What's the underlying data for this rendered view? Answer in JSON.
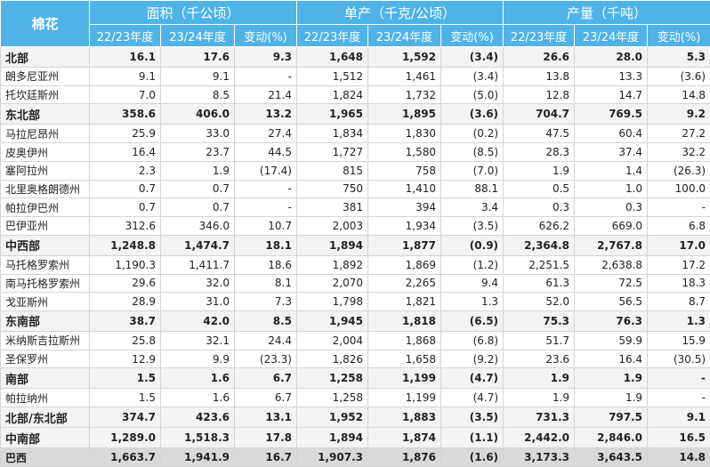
{
  "table": {
    "header": {
      "label": "棉花",
      "groups": [
        "面积（千公顷）",
        "单产（千克/公顷）",
        "产量（千吨）"
      ],
      "subheaders": [
        "22/23年度",
        "23/24年度",
        "变动(%)",
        "22/23年度",
        "23/24年度",
        "变动(%)",
        "22/23年度",
        "23/24年度",
        "变动(%)"
      ]
    },
    "rows": [
      [
        "北部",
        "16.1",
        "17.6",
        "9.3",
        "1,648",
        "1,592",
        "(3.4)",
        "26.6",
        "28.0",
        "5.3"
      ],
      [
        "朗多尼亚州",
        "9.1",
        "9.1",
        "-",
        "1,512",
        "1,461",
        "(3.4)",
        "13.8",
        "13.3",
        "(3.6)"
      ],
      [
        "托坎廷斯州",
        "7.0",
        "8.5",
        "21.4",
        "1,824",
        "1,732",
        "(5.0)",
        "12.8",
        "14.7",
        "14.8"
      ],
      [
        "东北部",
        "358.6",
        "406.0",
        "13.2",
        "1,965",
        "1,895",
        "(3.6)",
        "704.7",
        "769.5",
        "9.2"
      ],
      [
        "马拉尼昂州",
        "25.9",
        "33.0",
        "27.4",
        "1,834",
        "1,830",
        "(0.2)",
        "47.5",
        "60.4",
        "27.2"
      ],
      [
        "皮奥伊州",
        "16.4",
        "23.7",
        "44.5",
        "1,727",
        "1,580",
        "(8.5)",
        "28.3",
        "37.4",
        "32.2"
      ],
      [
        "塞阿拉州",
        "2.3",
        "1.9",
        "(17.4)",
        "815",
        "758",
        "(7.0)",
        "1.9",
        "1.4",
        "(26.3)"
      ],
      [
        "北里奥格朗德州",
        "0.7",
        "0.7",
        "-",
        "750",
        "1,410",
        "88.1",
        "0.5",
        "1.0",
        "100.0"
      ],
      [
        "帕拉伊巴州",
        "0.7",
        "0.7",
        "-",
        "381",
        "394",
        "3.4",
        "0.3",
        "0.3",
        "-"
      ],
      [
        "巴伊亚州",
        "312.6",
        "346.0",
        "10.7",
        "2,003",
        "1,934",
        "(3.5)",
        "626.2",
        "669.0",
        "6.8"
      ],
      [
        "中西部",
        "1,248.8",
        "1,474.7",
        "18.1",
        "1,894",
        "1,877",
        "(0.9)",
        "2,364.8",
        "2,767.8",
        "17.0"
      ],
      [
        "马托格罗索州",
        "1,190.3",
        "1,411.7",
        "18.6",
        "1,892",
        "1,869",
        "(1.2)",
        "2,251.5",
        "2,638.8",
        "17.2"
      ],
      [
        "南马托格罗索州",
        "29.6",
        "32.0",
        "8.1",
        "2,070",
        "2,265",
        "9.4",
        "61.3",
        "72.5",
        "18.3"
      ],
      [
        "戈亚斯州",
        "28.9",
        "31.0",
        "7.3",
        "1,798",
        "1,821",
        "1.3",
        "52.0",
        "56.5",
        "8.7"
      ],
      [
        "东南部",
        "38.7",
        "42.0",
        "8.5",
        "1,945",
        "1,818",
        "(6.5)",
        "75.3",
        "76.3",
        "1.3"
      ],
      [
        "米纳斯吉拉斯州",
        "25.8",
        "32.1",
        "24.4",
        "2,004",
        "1,868",
        "(6.8)",
        "51.7",
        "59.9",
        "15.9"
      ],
      [
        "圣保罗州",
        "12.9",
        "9.9",
        "(23.3)",
        "1,826",
        "1,658",
        "(9.2)",
        "23.6",
        "16.4",
        "(30.5)"
      ],
      [
        "南部",
        "1.5",
        "1.6",
        "6.7",
        "1,258",
        "1,199",
        "(4.7)",
        "1.9",
        "1.9",
        "-"
      ],
      [
        "帕拉纳州",
        "1.5",
        "1.6",
        "6.7",
        "1,258",
        "1,199",
        "(4.7)",
        "1.9",
        "1.9",
        "-"
      ],
      [
        "北部/东北部",
        "374.7",
        "423.6",
        "13.1",
        "1,952",
        "1,883",
        "(3.5)",
        "731.3",
        "797.5",
        "9.1"
      ],
      [
        "中南部",
        "1,289.0",
        "1,518.3",
        "17.8",
        "1,894",
        "1,874",
        "(1.1)",
        "2,442.0",
        "2,846.0",
        "16.5"
      ],
      [
        "巴西",
        "1,663.7",
        "1,941.9",
        "16.7",
        "1,907.3",
        "1,876",
        "(1.6)",
        "3,173.3",
        "3,643.5",
        "14.8"
      ]
    ]
  }
}
